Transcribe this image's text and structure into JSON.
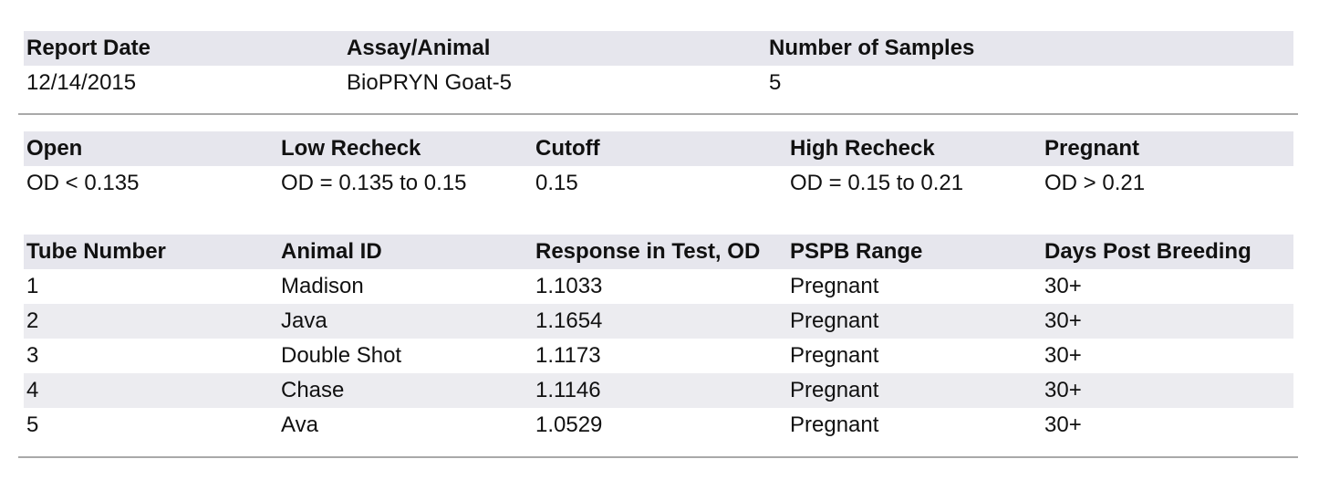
{
  "report": {
    "headers": [
      "Report Date",
      "Assay/Animal",
      "Number of Samples"
    ],
    "values": [
      "12/14/2015",
      "BioPRYN Goat-5",
      "5"
    ]
  },
  "ranges": {
    "headers": [
      "Open",
      "Low Recheck",
      "Cutoff",
      "High Recheck",
      "Pregnant"
    ],
    "values": [
      "OD < 0.135",
      "OD = 0.135 to 0.15",
      "0.15",
      "OD = 0.15 to 0.21",
      "OD > 0.21"
    ]
  },
  "results": {
    "headers": [
      "Tube Number",
      "Animal ID",
      "Response in Test, OD",
      "PSPB Range",
      "Days Post Breeding"
    ],
    "rows": [
      [
        "1",
        "Madison",
        "1.1033",
        "Pregnant",
        "30+"
      ],
      [
        "2",
        "Java",
        "1.1654",
        "Pregnant",
        "30+"
      ],
      [
        "3",
        "Double Shot",
        "1.1173",
        "Pregnant",
        "30+"
      ],
      [
        "4",
        "Chase",
        "1.1146",
        "Pregnant",
        "30+"
      ],
      [
        "5",
        "Ava",
        "1.0529",
        "Pregnant",
        "30+"
      ]
    ]
  }
}
